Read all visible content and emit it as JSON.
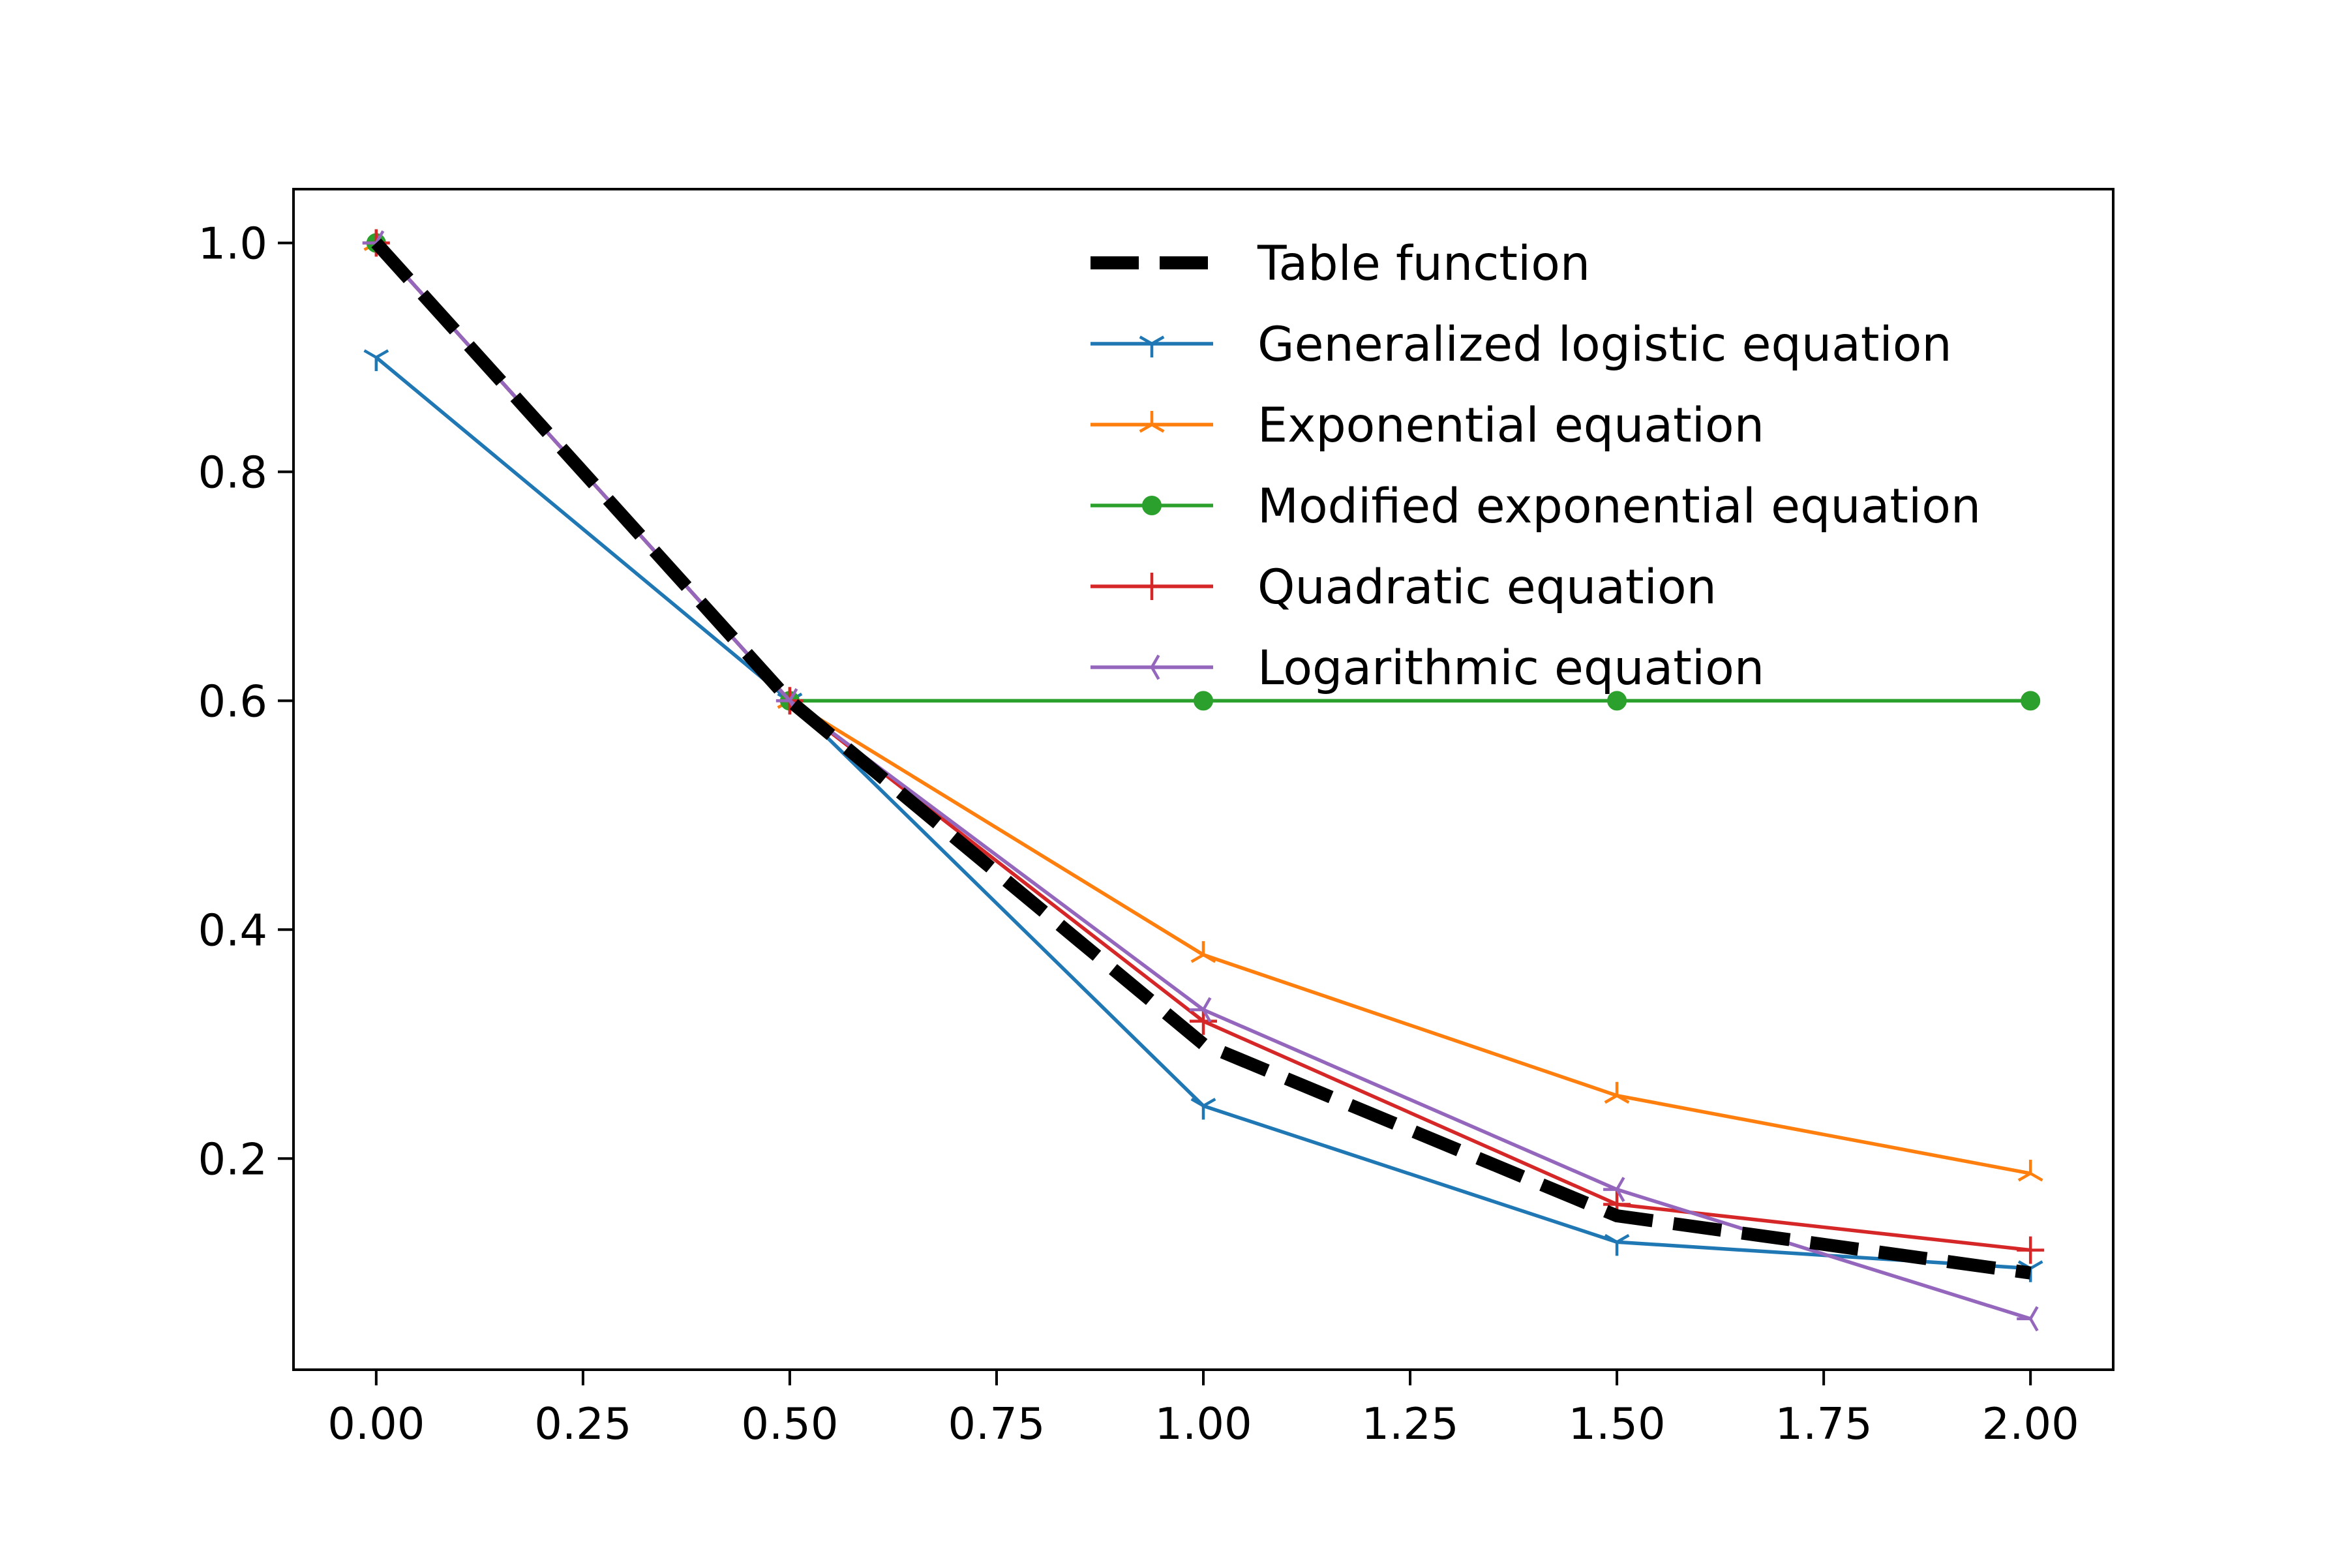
{
  "chart_data": {
    "type": "line",
    "title": "",
    "xlabel": "",
    "ylabel": "",
    "xlim": [
      -0.1,
      2.1
    ],
    "ylim": [
      0.0155,
      1.047
    ],
    "x_ticks": [
      0.0,
      0.25,
      0.5,
      0.75,
      1.0,
      1.25,
      1.5,
      1.75,
      2.0
    ],
    "x_tick_labels": [
      "0.00",
      "0.25",
      "0.50",
      "0.75",
      "1.00",
      "1.25",
      "1.50",
      "1.75",
      "2.00"
    ],
    "y_ticks": [
      0.2,
      0.4,
      0.6,
      0.8,
      1.0
    ],
    "y_tick_labels": [
      "0.2",
      "0.4",
      "0.6",
      "0.8",
      "1.0"
    ],
    "grid": false,
    "legend_position": "top-right",
    "x": [
      0.0,
      0.5,
      1.0,
      1.5,
      2.0
    ],
    "series": [
      {
        "name": "Table function",
        "values": [
          1.0,
          0.6,
          0.3,
          0.15,
          0.1
        ],
        "color": "#000000",
        "line_style": "dashed",
        "marker": "none"
      },
      {
        "name": "Generalized logistic equation",
        "values": [
          0.9,
          0.6,
          0.246,
          0.127,
          0.104
        ],
        "color": "#1f77b4",
        "line_style": "solid",
        "marker": "tri_down"
      },
      {
        "name": "Exponential equation",
        "values": [
          1.0,
          0.6,
          0.378,
          0.255,
          0.187
        ],
        "color": "#ff7f0e",
        "line_style": "solid",
        "marker": "tri_up"
      },
      {
        "name": "Modified exponential equation",
        "values": [
          1.0,
          0.6,
          0.6,
          0.6,
          0.6
        ],
        "color": "#2ca02c",
        "line_style": "solid",
        "marker": "point"
      },
      {
        "name": "Quadratic equation",
        "values": [
          1.0,
          0.6,
          0.32,
          0.16,
          0.12
        ],
        "color": "#d62728",
        "line_style": "solid",
        "marker": "plus"
      },
      {
        "name": "Logarithmic equation",
        "values": [
          1.0,
          0.6,
          0.33,
          0.173,
          0.06
        ],
        "color": "#9467bd",
        "line_style": "solid",
        "marker": "tri_left"
      }
    ]
  }
}
